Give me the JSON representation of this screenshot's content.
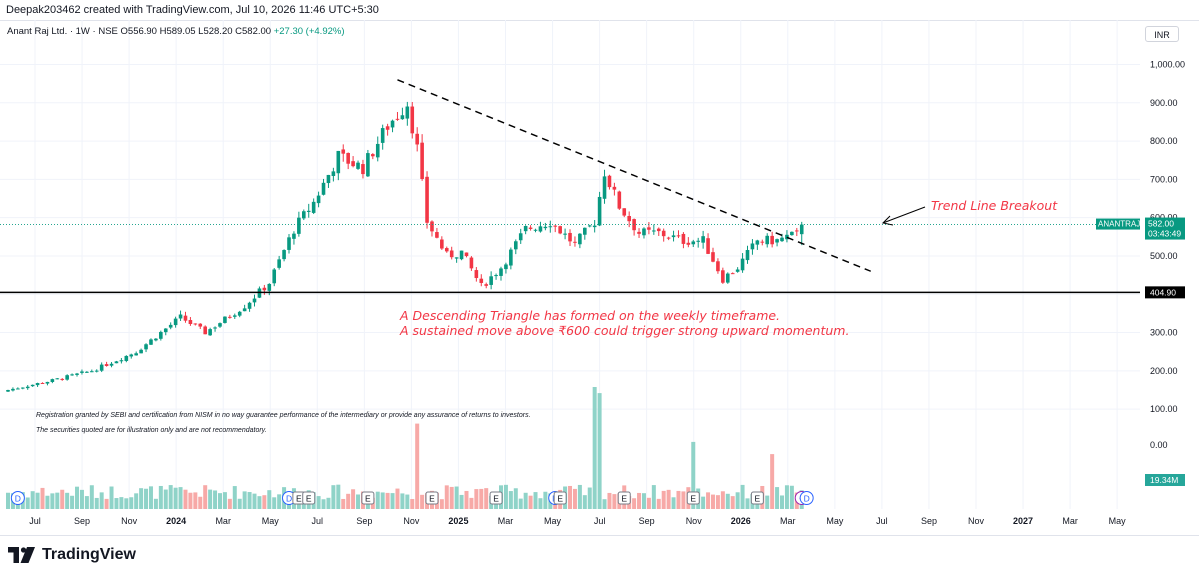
{
  "header": {
    "credit": "Deepak203462 created with TradingView.com, Jul 10, 2026 11:46 UTC+5:30"
  },
  "legend": {
    "symbol": "Anant Raj Ltd. · 1W · NSE",
    "open": "O556.90",
    "high": "H589.05",
    "low": "L528.20",
    "close": "C582.00",
    "change": "+27.30 (+4.92%)"
  },
  "currency": "INR",
  "price_tag": {
    "symbol": "ANANTRAJ",
    "price": "582.00",
    "countdown": "03:43:49"
  },
  "support_tag": "404.90",
  "volume_tag": "19.34M",
  "annotations": {
    "breakout": "Trend Line Breakout",
    "line1": "A Descending Triangle has formed on the weekly timeframe.",
    "line2": "A sustained move above ₹600 could trigger strong upward momentum."
  },
  "disclaimer": {
    "line1": "Registration granted by SEBI and certification from NISM in no way guarantee performance of the intermediary or provide any assurance of returns to investors.",
    "line2": "The securities quoted are for illustration only and are not recommendatory."
  },
  "footer": {
    "brand": "TradingView"
  },
  "colors": {
    "up": "#089981",
    "down": "#f23645",
    "vol_up": "#8fd3c8",
    "vol_down": "#f7a9a7",
    "annotation": "#f23645"
  },
  "chart_data": {
    "type": "candlestick",
    "title": "",
    "timeframe": "1W",
    "price_axis": {
      "ticks": [
        100,
        200,
        300,
        400,
        500,
        600,
        700,
        800,
        900,
        1000
      ],
      "tick_labels": [
        "100.00",
        "200.00",
        "300.00",
        "400.00",
        "500.00",
        "600.00",
        "700.00",
        "800.00",
        "900.00",
        "1,000.00"
      ],
      "volume_tick_label": "0.00",
      "range": [
        0,
        1050
      ]
    },
    "time_axis": {
      "labels": [
        "Jul",
        "Sep",
        "Nov",
        "2024",
        "Mar",
        "May",
        "Jul",
        "Sep",
        "Nov",
        "2025",
        "Mar",
        "May",
        "Jul",
        "Sep",
        "Nov",
        "2026",
        "Mar",
        "May",
        "Jul",
        "Sep",
        "Nov",
        "2027",
        "Mar",
        "May"
      ],
      "bold": [
        "2024",
        "2025",
        "2026",
        "2027"
      ]
    },
    "support_level": 404.9,
    "last_close": 582.0,
    "trendline": {
      "from": {
        "date": "2024-12-09",
        "price": 960
      },
      "to": {
        "date": "2026-10-12",
        "price": 460
      }
    },
    "close_anchors": [
      {
        "date": "2023-06-05",
        "close": 150
      },
      {
        "date": "2023-08-07",
        "close": 175
      },
      {
        "date": "2023-10-02",
        "close": 200
      },
      {
        "date": "2023-12-04",
        "close": 250
      },
      {
        "date": "2024-02-05",
        "close": 340
      },
      {
        "date": "2024-03-11",
        "close": 300
      },
      {
        "date": "2024-05-06",
        "close": 370
      },
      {
        "date": "2024-06-10",
        "close": 430
      },
      {
        "date": "2024-07-15",
        "close": 570
      },
      {
        "date": "2024-08-12",
        "close": 640
      },
      {
        "date": "2024-09-16",
        "close": 760
      },
      {
        "date": "2024-10-21",
        "close": 730
      },
      {
        "date": "2024-11-25",
        "close": 840
      },
      {
        "date": "2024-12-23",
        "close": 900
      },
      {
        "date": "2025-01-06",
        "close": 780
      },
      {
        "date": "2025-01-20",
        "close": 590
      },
      {
        "date": "2025-02-17",
        "close": 500
      },
      {
        "date": "2025-03-10",
        "close": 510
      },
      {
        "date": "2025-04-07",
        "close": 420
      },
      {
        "date": "2025-05-05",
        "close": 470
      },
      {
        "date": "2025-06-09",
        "close": 570
      },
      {
        "date": "2025-07-14",
        "close": 590
      },
      {
        "date": "2025-08-18",
        "close": 530
      },
      {
        "date": "2025-09-15",
        "close": 590
      },
      {
        "date": "2025-09-29",
        "close": 720
      },
      {
        "date": "2025-10-20",
        "close": 630
      },
      {
        "date": "2025-11-17",
        "close": 560
      },
      {
        "date": "2025-12-15",
        "close": 560
      },
      {
        "date": "2026-01-19",
        "close": 540
      },
      {
        "date": "2026-02-16",
        "close": 540
      },
      {
        "date": "2026-03-16",
        "close": 440
      },
      {
        "date": "2026-04-06",
        "close": 470
      },
      {
        "date": "2026-05-04",
        "close": 540
      },
      {
        "date": "2026-06-01",
        "close": 540
      },
      {
        "date": "2026-06-15",
        "close": 550
      },
      {
        "date": "2026-06-29",
        "close": 555
      },
      {
        "date": "2026-07-06",
        "close": 582
      }
    ],
    "last_candle": {
      "open": 556.9,
      "high": 589.05,
      "low": 528.2,
      "close": 582.0
    },
    "volume_spikes": [
      {
        "date": "2025-01-06",
        "volume_rel": 0.7
      },
      {
        "date": "2025-09-15",
        "volume_rel": 1.0
      },
      {
        "date": "2025-09-22",
        "volume_rel": 0.95
      },
      {
        "date": "2026-02-02",
        "volume_rel": 0.55
      },
      {
        "date": "2026-05-25",
        "volume_rel": 0.45
      }
    ],
    "events": [
      {
        "date": "2023-06-19",
        "type": "D"
      },
      {
        "date": "2024-07-08",
        "type": "D"
      },
      {
        "date": "2024-07-22",
        "type": "E"
      },
      {
        "date": "2024-08-05",
        "type": "E"
      },
      {
        "date": "2024-10-28",
        "type": "E"
      },
      {
        "date": "2025-01-27",
        "type": "E"
      },
      {
        "date": "2025-04-28",
        "type": "E"
      },
      {
        "date": "2025-07-21",
        "type": "D"
      },
      {
        "date": "2025-07-28",
        "type": "E"
      },
      {
        "date": "2025-10-27",
        "type": "E"
      },
      {
        "date": "2026-02-02",
        "type": "E"
      },
      {
        "date": "2026-05-04",
        "type": "E"
      },
      {
        "date": "2026-07-06",
        "type": "S"
      },
      {
        "date": "2026-07-13",
        "type": "D"
      }
    ]
  }
}
